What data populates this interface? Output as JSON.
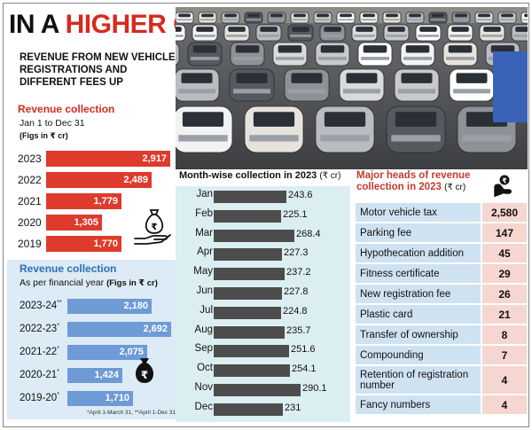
{
  "headline": {
    "part1": "IN A",
    "part2": "HIGHER GEAR"
  },
  "subhead": "REVENUE FROM NEW VEHICLE REGISTRATIONS AND DIFFERENT FEES UP",
  "chart_data": [
    {
      "type": "bar",
      "title": "Revenue collection",
      "subtitle": "Jan 1 to Dec 31",
      "note": "(Figs in ₹ cr)",
      "categories": [
        "2023",
        "2022",
        "2021",
        "2020",
        "2019"
      ],
      "values": [
        2917,
        2489,
        1779,
        1305,
        1770
      ],
      "labels": [
        "2,917",
        "2,489",
        "1,779",
        "1,305",
        "1,770"
      ],
      "color": "#de3b2c",
      "xlim": [
        0,
        2917
      ]
    },
    {
      "type": "bar",
      "title": "Revenue collection",
      "subtitle": "As per financial year",
      "note": "(Figs in ₹ cr)",
      "categories": [
        "2023-24",
        "2022-23",
        "2021-22",
        "2020-21",
        "2019-20"
      ],
      "markers": [
        "**",
        "*",
        "*",
        "*",
        "*"
      ],
      "values": [
        2180,
        2692,
        2075,
        1424,
        1710
      ],
      "labels": [
        "2,180",
        "2,692",
        "2,075",
        "1,424",
        "1,710"
      ],
      "color": "#6e9ad6",
      "footnote": "*April 1-March 31, **April 1-Dec 31",
      "xlim": [
        0,
        2692
      ]
    },
    {
      "type": "bar",
      "title": "Month-wise collection in 2023",
      "unit": "(₹ cr)",
      "categories": [
        "Jan",
        "Feb",
        "Mar",
        "Apr",
        "May",
        "Jun",
        "Jul",
        "Aug",
        "Sep",
        "Oct",
        "Nov",
        "Dec"
      ],
      "values": [
        243.6,
        225.1,
        268.4,
        227.3,
        237.2,
        227.8,
        224.8,
        235.7,
        251.6,
        254.1,
        290.1,
        231
      ],
      "labels": [
        "243.6",
        "225.1",
        "268.4",
        "227.3",
        "237.2",
        "227.8",
        "224.8",
        "235.7",
        "251.6",
        "254.1",
        "290.1",
        "231"
      ],
      "color": "#4d4d4d",
      "xlim": [
        0,
        290.1
      ]
    },
    {
      "type": "table",
      "title": "Major heads of revenue collection in 2023",
      "unit": "(₹ cr)",
      "rows": [
        {
          "name": "Motor vehicle tax",
          "value": "2,580"
        },
        {
          "name": "Parking fee",
          "value": "147"
        },
        {
          "name": "Hypothecation addition",
          "value": "45"
        },
        {
          "name": "Fitness certificate",
          "value": "29"
        },
        {
          "name": "New registration fee",
          "value": "26"
        },
        {
          "name": "Plastic card",
          "value": "21"
        },
        {
          "name": "Transfer of ownership",
          "value": "8"
        },
        {
          "name": "Compounding",
          "value": "7"
        },
        {
          "name": "Retention of registration number",
          "value": "4"
        },
        {
          "name": "Fancy numbers",
          "value": "4"
        }
      ]
    }
  ],
  "colors": {
    "red": "#de3b2c",
    "blue": "#6e9ad6",
    "dark_bar": "#4d4d4d",
    "panel_blue": "#dcebf5",
    "panel_teal": "#dbeef2",
    "row_blue": "#cfe2f1",
    "row_pink": "#f6d6d0"
  },
  "icons": {
    "money_hand": "hand-money-bag-icon",
    "rupee_bag": "rupee-bag-icon",
    "hand_coin": "hand-coin-icon",
    "photo": "traffic-photo"
  }
}
